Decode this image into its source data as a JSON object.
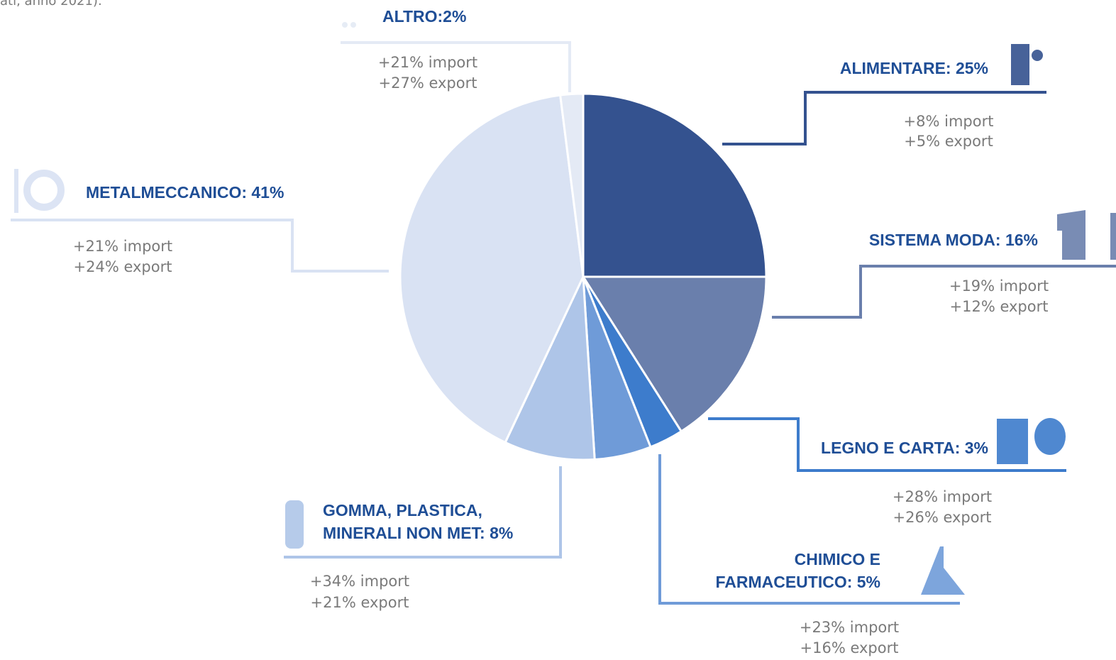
{
  "source_note": "ati, anno 2021).",
  "chart_data": {
    "type": "pie",
    "values": [
      25,
      16,
      3,
      5,
      8,
      41,
      2
    ],
    "value_labels": [
      [
        "ALIMENTARE: 25%"
      ],
      [
        "SISTEMA MODA: 16%"
      ],
      [
        "LEGNO E CARTA: 3%"
      ],
      [
        "CHIMICO E",
        "FARMACEUTICO: 5%"
      ],
      [
        "GOMMA, PLASTICA,",
        "MINERALI NON MET: 8%"
      ],
      [
        "METALMECCANICO: 41%"
      ],
      [
        "ALTRO:2%"
      ]
    ],
    "notes": [
      [
        "+8% import",
        "+5% export"
      ],
      [
        "+19% import",
        "+12% export"
      ],
      [
        "+28% import",
        "+26% export"
      ],
      [
        "+23% import",
        "+16% export"
      ],
      [
        "+34% import",
        "+21% export"
      ],
      [
        "+21% import",
        "+24% export"
      ],
      [
        "+21% import",
        "+27% export"
      ]
    ],
    "colors": [
      "#34528f",
      "#6a7fac",
      "#3d7ccc",
      "#6f9bd8",
      "#aec5e8",
      "#d9e2f3",
      "#e4eaf5"
    ]
  }
}
